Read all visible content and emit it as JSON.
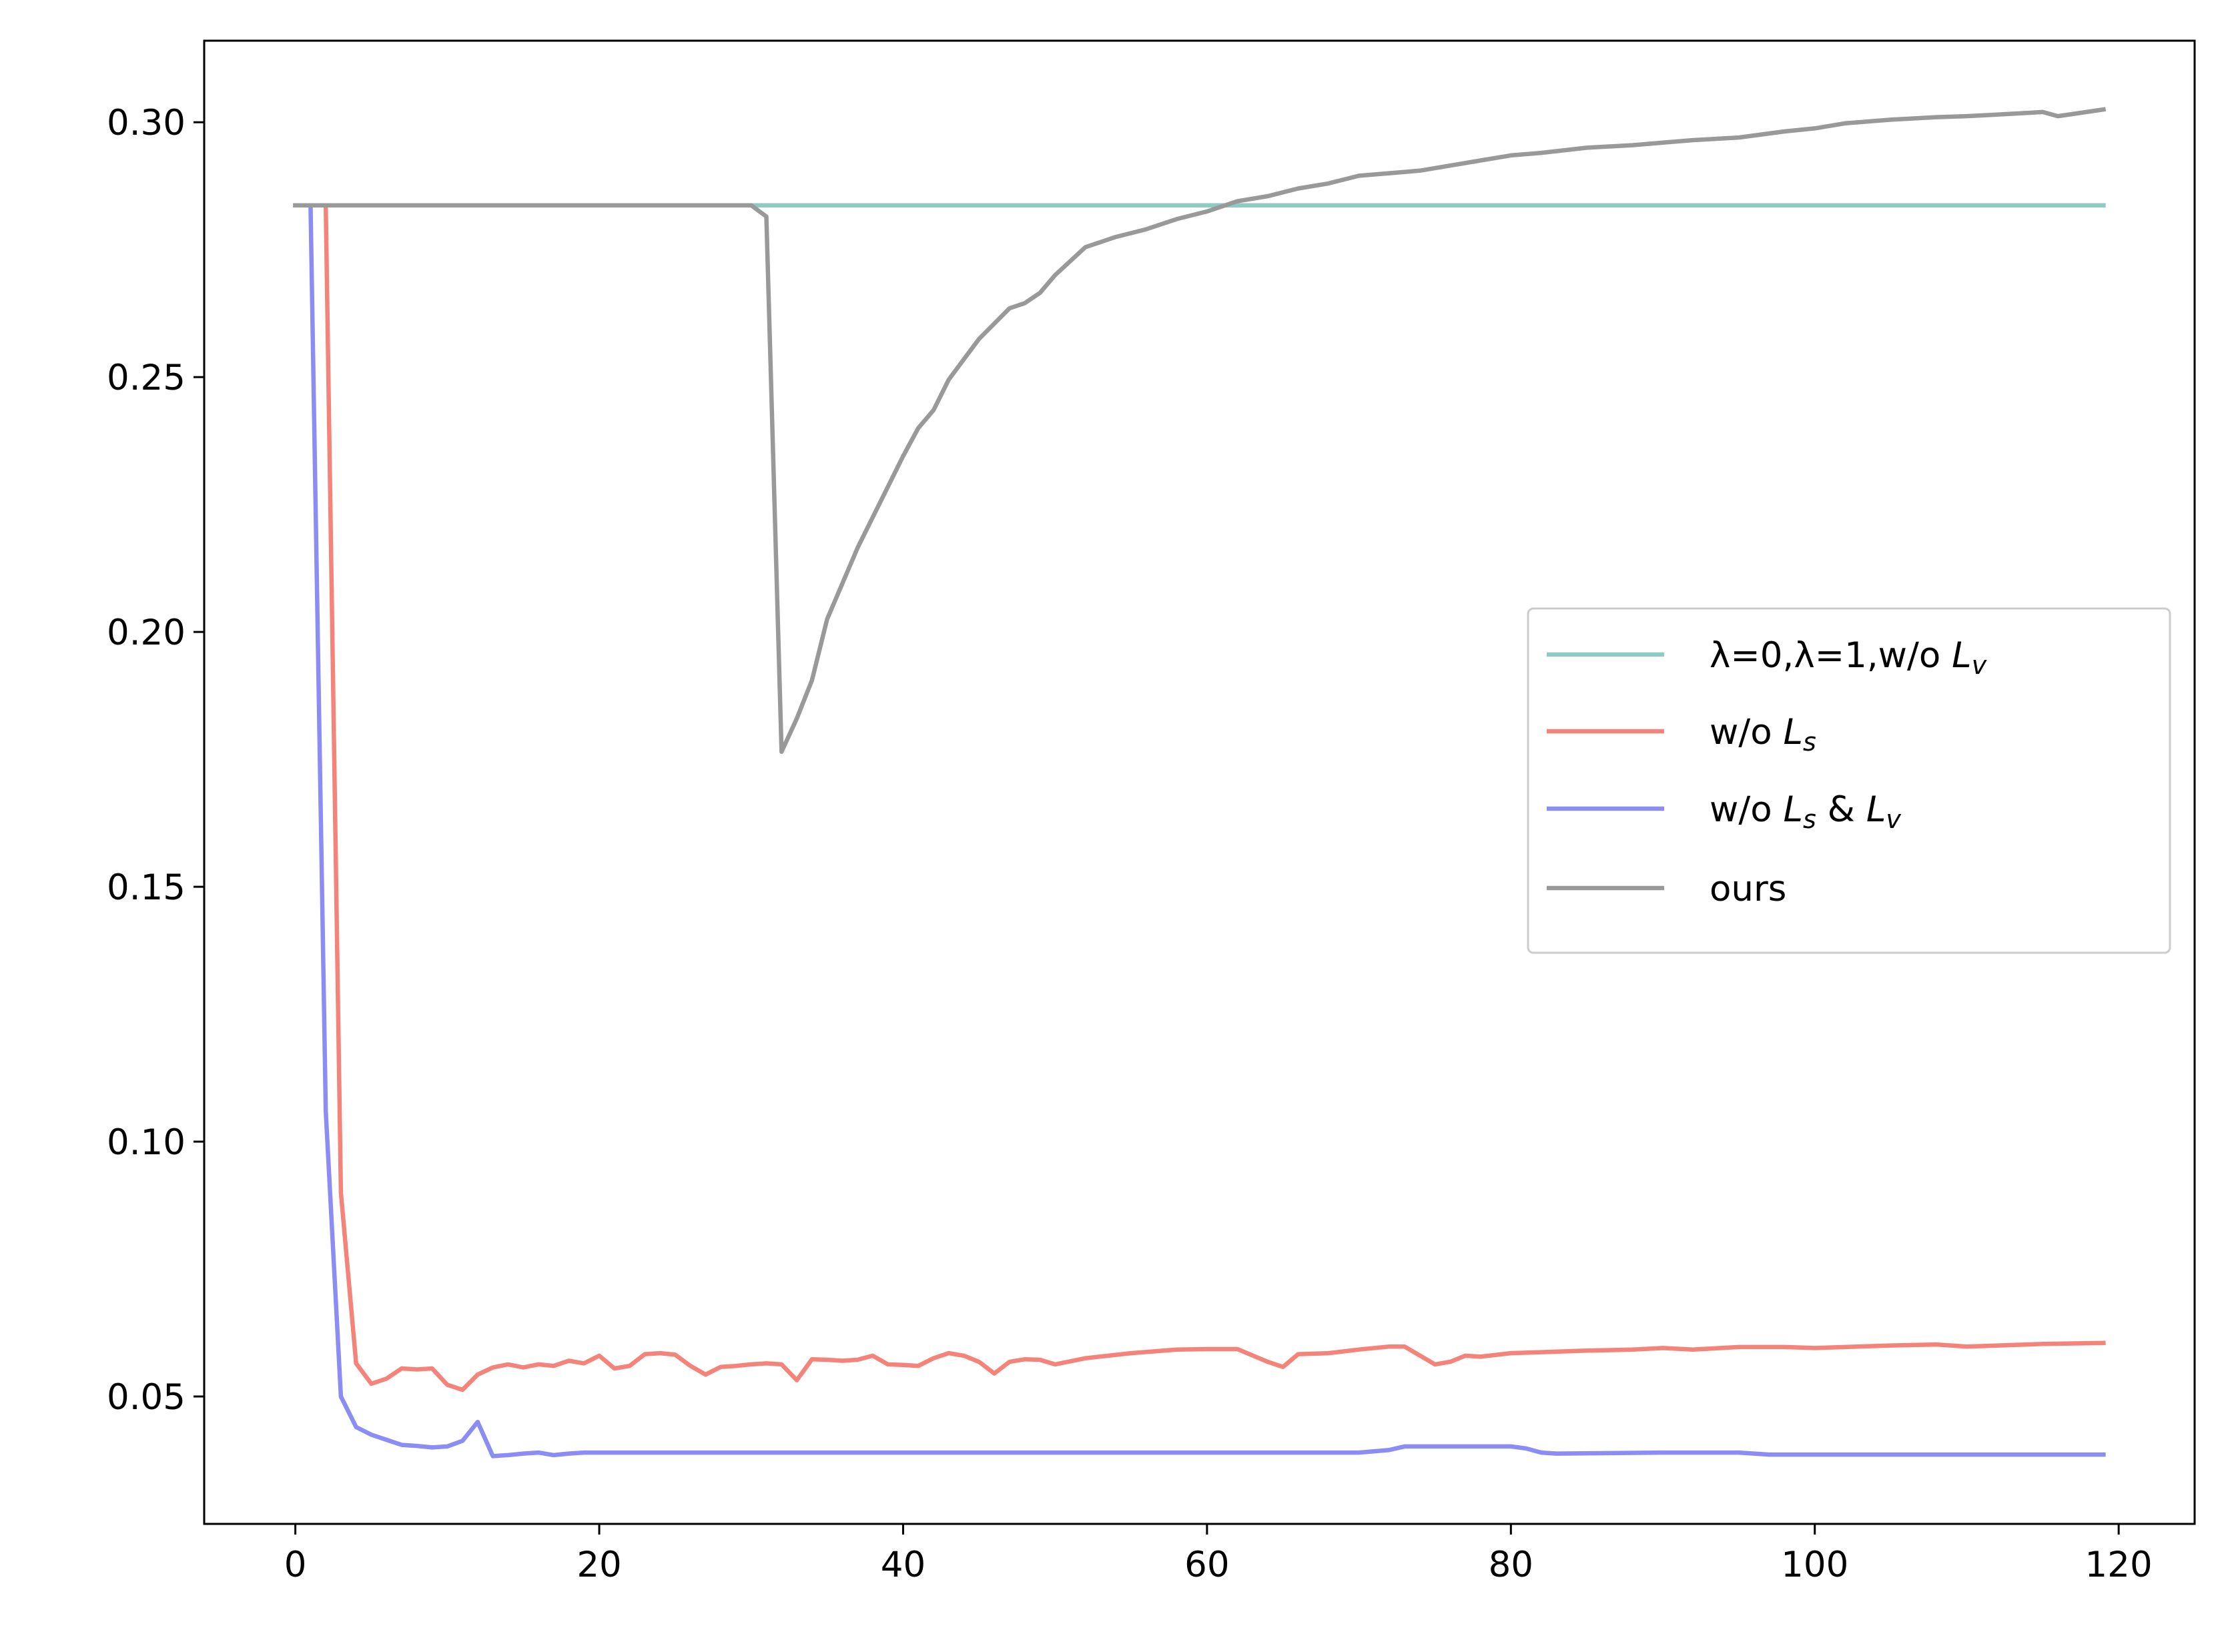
{
  "chart_data": {
    "type": "line",
    "title": "",
    "xlabel": "",
    "ylabel": "",
    "xlim": [
      -6,
      125
    ],
    "ylim": [
      0.025,
      0.316
    ],
    "xticks": [
      0,
      20,
      40,
      60,
      80,
      100,
      120
    ],
    "xtick_labels": [
      "0",
      "20",
      "40",
      "60",
      "80",
      "100",
      "120"
    ],
    "yticks": [
      0.05,
      0.1,
      0.15,
      0.2,
      0.25,
      0.3
    ],
    "ytick_labels": [
      "0.05",
      "0.10",
      "0.15",
      "0.20",
      "0.25",
      "0.30"
    ],
    "grid": false,
    "legend_position": "center-right",
    "series": [
      {
        "name": "λ=0,λ=1,w/o L_v",
        "legend_prefix": "λ=0,λ=1,w/o ",
        "legend_symbol": "L",
        "legend_sub": "v",
        "color": "#8ecbc4",
        "x": [
          0,
          10,
          20,
          30,
          40,
          50,
          60,
          70,
          80,
          90,
          100,
          110,
          119
        ],
        "y": [
          0.2837,
          0.2837,
          0.2837,
          0.2837,
          0.2837,
          0.2837,
          0.2837,
          0.2837,
          0.2837,
          0.2837,
          0.2837,
          0.2837,
          0.2837
        ]
      },
      {
        "name": "w/o L_s",
        "legend_prefix": "w/o ",
        "legend_symbol": "L",
        "legend_sub": "s",
        "color": "#f4837a",
        "x": [
          0,
          1,
          2,
          3,
          4,
          5,
          6,
          7,
          8,
          9,
          10,
          11,
          12,
          13,
          14,
          15,
          16,
          17,
          18,
          19,
          20,
          21,
          22,
          23,
          24,
          25,
          26,
          27,
          28,
          29,
          30,
          31,
          32,
          33,
          34,
          35,
          36,
          37,
          38,
          39,
          40,
          41,
          42,
          43,
          44,
          45,
          46,
          47,
          48,
          49,
          50,
          52,
          55,
          58,
          60,
          62,
          64,
          65,
          66,
          68,
          70,
          72,
          73,
          75,
          76,
          77,
          78,
          80,
          82,
          85,
          88,
          90,
          92,
          95,
          98,
          100,
          105,
          108,
          110,
          115,
          119
        ],
        "y": [
          0.2837,
          0.2837,
          0.2837,
          0.09,
          0.0565,
          0.0525,
          0.0535,
          0.0555,
          0.0553,
          0.0555,
          0.0523,
          0.0513,
          0.0543,
          0.0557,
          0.0563,
          0.0557,
          0.0563,
          0.056,
          0.057,
          0.0565,
          0.058,
          0.0555,
          0.056,
          0.0583,
          0.0585,
          0.0582,
          0.056,
          0.0543,
          0.0558,
          0.056,
          0.0563,
          0.0565,
          0.0563,
          0.0532,
          0.0573,
          0.0572,
          0.057,
          0.0572,
          0.058,
          0.0563,
          0.0562,
          0.056,
          0.0575,
          0.0585,
          0.058,
          0.0568,
          0.0545,
          0.0568,
          0.0573,
          0.0572,
          0.0563,
          0.0575,
          0.0585,
          0.0592,
          0.0593,
          0.0593,
          0.0568,
          0.0558,
          0.0583,
          0.0585,
          0.0592,
          0.0598,
          0.0598,
          0.0563,
          0.0568,
          0.058,
          0.0578,
          0.0585,
          0.0587,
          0.059,
          0.0592,
          0.0595,
          0.0592,
          0.0597,
          0.0597,
          0.0595,
          0.06,
          0.0602,
          0.0598,
          0.0603,
          0.0605
        ]
      },
      {
        "name": "w/o L_s & L_v",
        "legend_prefix": "w/o ",
        "legend_symbol": "L",
        "legend_sub": "s",
        "legend_mid": " & ",
        "legend_symbol2": "L",
        "legend_sub2": "v",
        "color": "#8c8cf5",
        "x": [
          0,
          1,
          2,
          3,
          4,
          5,
          6,
          7,
          8,
          9,
          10,
          11,
          12,
          13,
          14,
          15,
          16,
          17,
          18,
          19,
          20,
          30,
          40,
          50,
          60,
          70,
          72,
          73,
          80,
          81,
          82,
          83,
          90,
          95,
          97,
          100,
          110,
          119
        ],
        "y": [
          0.2837,
          0.2837,
          0.106,
          0.05,
          0.044,
          0.0425,
          0.0415,
          0.0405,
          0.0403,
          0.04,
          0.0402,
          0.0413,
          0.045,
          0.0383,
          0.0385,
          0.0388,
          0.039,
          0.0385,
          0.0388,
          0.039,
          0.039,
          0.039,
          0.039,
          0.039,
          0.039,
          0.039,
          0.0395,
          0.0402,
          0.0402,
          0.0398,
          0.039,
          0.0388,
          0.039,
          0.039,
          0.0386,
          0.0386,
          0.0386,
          0.0386
        ]
      },
      {
        "name": "ours",
        "legend_prefix": "ours",
        "color": "#999999",
        "x": [
          0,
          10,
          20,
          30,
          31,
          32,
          33,
          34,
          35,
          36,
          37,
          38,
          39,
          40,
          41,
          42,
          43,
          44,
          45,
          46,
          47,
          48,
          49,
          50,
          52,
          54,
          56,
          58,
          60,
          62,
          64,
          66,
          68,
          70,
          72,
          74,
          76,
          78,
          80,
          82,
          85,
          88,
          90,
          92,
          95,
          98,
          100,
          102,
          105,
          108,
          110,
          112,
          115,
          116,
          119
        ],
        "y": [
          0.2837,
          0.2837,
          0.2837,
          0.2837,
          0.2815,
          0.1765,
          0.183,
          0.1905,
          0.2025,
          0.2095,
          0.2165,
          0.2225,
          0.2285,
          0.2345,
          0.24,
          0.2435,
          0.2495,
          0.2535,
          0.2575,
          0.2605,
          0.2635,
          0.2645,
          0.2665,
          0.27,
          0.2755,
          0.2775,
          0.279,
          0.281,
          0.2825,
          0.2845,
          0.2855,
          0.287,
          0.288,
          0.2895,
          0.29,
          0.2905,
          0.2915,
          0.2925,
          0.2935,
          0.294,
          0.295,
          0.2955,
          0.296,
          0.2965,
          0.297,
          0.2982,
          0.2988,
          0.2998,
          0.3005,
          0.301,
          0.3012,
          0.3015,
          0.302,
          0.3012,
          0.3025
        ]
      }
    ]
  }
}
